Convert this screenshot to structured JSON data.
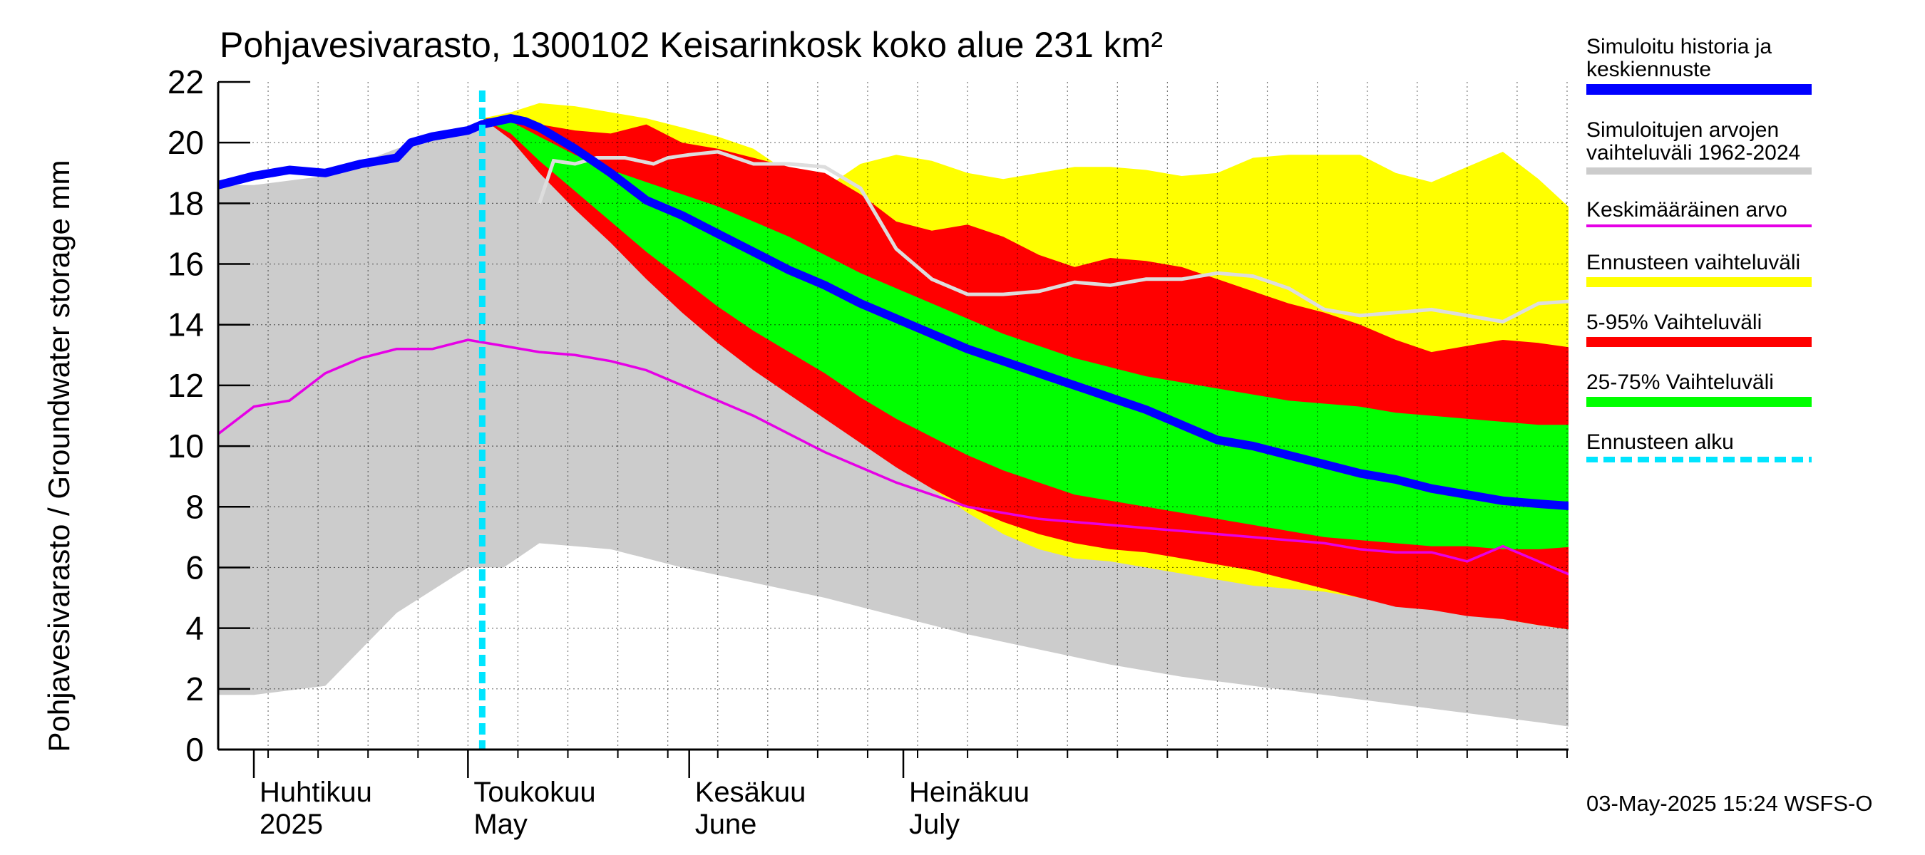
{
  "chart_data": {
    "type": "area",
    "title": "Pohjavesivarasto, 1300102 Keisarinkosk koko alue 231 km²",
    "ylabel": "Pohjavesivarasto / Groundwater storage   mm",
    "ylim": [
      0,
      22
    ],
    "yticks": [
      "0",
      "2",
      "4",
      "6",
      "8",
      "10",
      "12",
      "14",
      "16",
      "18",
      "20",
      "22"
    ],
    "xrange_days": [
      -35,
      156
    ],
    "month_labels": [
      {
        "fi": "Huhtikuu",
        "en": "2025",
        "day": -30
      },
      {
        "fi": "Toukokuu",
        "en": "May",
        "day": 0
      },
      {
        "fi": "Kesäkuu",
        "en": "June",
        "day": 31
      },
      {
        "fi": "Heinäkuu",
        "en": "July",
        "day": 61
      }
    ],
    "month_boundaries": [
      -30,
      0,
      31,
      61
    ],
    "forecast_start_day": 2,
    "history_range": {
      "x": [
        -35,
        -30,
        -20,
        -10,
        0,
        5,
        10,
        20,
        30,
        40,
        50,
        60,
        70,
        80,
        90,
        100,
        110,
        120,
        130,
        140,
        150,
        156
      ],
      "upper": [
        18.6,
        18.6,
        18.9,
        19.8,
        20.4,
        20.6,
        20.8,
        20.5,
        19.2,
        17.4,
        15.5,
        14.0,
        12.6,
        11.5,
        10.2,
        9.1,
        8.2,
        7.6,
        6.9,
        6.5,
        6.0,
        5.5
      ],
      "lower": [
        1.8,
        1.8,
        2.1,
        4.5,
        6.0,
        6.0,
        6.8,
        6.6,
        6.0,
        5.5,
        5.0,
        4.4,
        3.8,
        3.3,
        2.8,
        2.4,
        2.1,
        1.8,
        1.5,
        1.2,
        0.9,
        0.7
      ]
    },
    "forecast_range": {
      "x": [
        2,
        6,
        10,
        15,
        20,
        25,
        30,
        35,
        40,
        45,
        50,
        55,
        60,
        65,
        70,
        75,
        80,
        85,
        90,
        95,
        100,
        105,
        110,
        115,
        120,
        125,
        130,
        135,
        140,
        145,
        150,
        156
      ],
      "upper": [
        20.8,
        21.0,
        21.3,
        21.2,
        21.0,
        20.8,
        20.5,
        20.2,
        19.8,
        19.0,
        18.5,
        19.3,
        19.6,
        19.4,
        19.0,
        18.8,
        19.0,
        19.2,
        19.2,
        19.1,
        18.9,
        19.0,
        19.5,
        19.6,
        19.6,
        19.6,
        19.0,
        18.7,
        19.2,
        19.7,
        18.8,
        17.5
      ],
      "lower": [
        20.8,
        20.4,
        19.5,
        18.6,
        17.6,
        16.4,
        15.2,
        14.0,
        13.1,
        12.3,
        11.3,
        10.4,
        9.4,
        8.6,
        7.8,
        7.1,
        6.6,
        6.3,
        6.2,
        6.0,
        5.8,
        5.6,
        5.4,
        5.3,
        5.2,
        5.0,
        4.9,
        4.7,
        4.5,
        4.3,
        4.1,
        3.9
      ]
    },
    "p5_95": {
      "x": [
        2,
        6,
        10,
        15,
        20,
        25,
        30,
        35,
        40,
        45,
        50,
        55,
        60,
        65,
        70,
        75,
        80,
        85,
        90,
        95,
        100,
        105,
        110,
        115,
        120,
        125,
        130,
        135,
        140,
        145,
        150,
        156
      ],
      "upper": [
        20.8,
        20.8,
        20.6,
        20.4,
        20.3,
        20.6,
        20.0,
        19.8,
        19.5,
        19.2,
        19.0,
        18.3,
        17.4,
        17.1,
        17.3,
        16.9,
        16.3,
        15.9,
        16.2,
        16.1,
        15.9,
        15.5,
        15.1,
        14.7,
        14.4,
        14.0,
        13.5,
        13.1,
        13.3,
        13.5,
        13.4,
        13.2
      ],
      "lower": [
        20.8,
        20.1,
        19.0,
        17.8,
        16.7,
        15.5,
        14.4,
        13.4,
        12.5,
        11.7,
        10.9,
        10.1,
        9.3,
        8.6,
        8.0,
        7.5,
        7.1,
        6.8,
        6.6,
        6.5,
        6.3,
        6.1,
        5.9,
        5.6,
        5.3,
        5.0,
        4.7,
        4.6,
        4.4,
        4.3,
        4.1,
        3.9
      ]
    },
    "p25_75": {
      "x": [
        2,
        6,
        10,
        15,
        20,
        25,
        30,
        35,
        40,
        45,
        50,
        55,
        60,
        65,
        70,
        75,
        80,
        85,
        90,
        95,
        100,
        105,
        110,
        115,
        120,
        125,
        130,
        135,
        140,
        145,
        150,
        156
      ],
      "upper": [
        20.8,
        20.7,
        20.2,
        19.6,
        19.1,
        18.7,
        18.3,
        17.9,
        17.4,
        16.9,
        16.3,
        15.7,
        15.2,
        14.7,
        14.2,
        13.7,
        13.3,
        12.9,
        12.6,
        12.3,
        12.1,
        11.9,
        11.7,
        11.5,
        11.4,
        11.3,
        11.1,
        11.0,
        10.9,
        10.8,
        10.7,
        10.7
      ],
      "lower": [
        20.8,
        20.3,
        19.4,
        18.4,
        17.4,
        16.4,
        15.5,
        14.6,
        13.8,
        13.1,
        12.4,
        11.6,
        10.9,
        10.3,
        9.7,
        9.2,
        8.8,
        8.4,
        8.2,
        8.0,
        7.8,
        7.6,
        7.4,
        7.2,
        7.0,
        6.9,
        6.8,
        6.7,
        6.7,
        6.6,
        6.6,
        6.7
      ]
    },
    "simulated_forecast": {
      "x": [
        -35,
        -30,
        -25,
        -20,
        -15,
        -10,
        -8,
        -5,
        0,
        2,
        4,
        6,
        8,
        10,
        15,
        20,
        25,
        30,
        35,
        40,
        45,
        50,
        55,
        60,
        65,
        70,
        75,
        80,
        85,
        90,
        95,
        100,
        105,
        110,
        115,
        120,
        125,
        130,
        135,
        140,
        145,
        150,
        156
      ],
      "y": [
        18.6,
        18.9,
        19.1,
        19.0,
        19.3,
        19.5,
        20.0,
        20.2,
        20.4,
        20.6,
        20.7,
        20.8,
        20.7,
        20.5,
        19.8,
        19.0,
        18.1,
        17.6,
        17.0,
        16.4,
        15.8,
        15.3,
        14.7,
        14.2,
        13.7,
        13.2,
        12.8,
        12.4,
        12.0,
        11.6,
        11.2,
        10.7,
        10.2,
        10.0,
        9.7,
        9.4,
        9.1,
        8.9,
        8.6,
        8.4,
        8.2,
        8.1,
        8.0
      ]
    },
    "median_history": {
      "x": [
        10,
        12,
        15,
        18,
        22,
        26,
        28,
        31,
        35,
        40,
        45,
        50,
        55,
        60,
        65,
        70,
        75,
        80,
        85,
        90,
        95,
        100,
        105,
        110,
        115,
        120,
        125,
        130,
        135,
        140,
        145,
        150,
        156
      ],
      "y": [
        18.0,
        19.4,
        19.3,
        19.5,
        19.5,
        19.3,
        19.5,
        19.6,
        19.7,
        19.3,
        19.3,
        19.2,
        18.5,
        16.5,
        15.5,
        15.0,
        15.0,
        15.1,
        15.4,
        15.3,
        15.5,
        15.5,
        15.7,
        15.6,
        15.2,
        14.5,
        14.3,
        14.4,
        14.5,
        14.3,
        14.1,
        14.7,
        14.8
      ]
    },
    "mean": {
      "x": [
        -35,
        -30,
        -25,
        -20,
        -15,
        -10,
        -5,
        0,
        5,
        10,
        15,
        20,
        25,
        30,
        35,
        40,
        45,
        50,
        55,
        60,
        65,
        70,
        75,
        80,
        85,
        90,
        95,
        100,
        105,
        110,
        115,
        120,
        125,
        130,
        135,
        140,
        145,
        150,
        156
      ],
      "y": [
        10.4,
        11.3,
        11.5,
        12.4,
        12.9,
        13.2,
        13.2,
        13.5,
        13.3,
        13.1,
        13.0,
        12.8,
        12.5,
        12.0,
        11.5,
        11.0,
        10.4,
        9.8,
        9.3,
        8.8,
        8.4,
        8.0,
        7.8,
        7.6,
        7.5,
        7.4,
        7.3,
        7.2,
        7.1,
        7.0,
        6.9,
        6.8,
        6.6,
        6.5,
        6.5,
        6.2,
        6.7,
        6.2,
        5.6
      ]
    }
  },
  "legend": {
    "items": [
      {
        "label": "Simuloitu historia ja\nkeskiennuste",
        "color": "#0000ff"
      },
      {
        "label": "Simuloitujen arvojen\nvaihteluväli 1962-2024",
        "color": "#cccccc"
      },
      {
        "label": "Keskimääräinen arvo",
        "color": "#e600e6"
      },
      {
        "label": "Ennusteen vaihteluväli",
        "color": "#ffff00"
      },
      {
        "label": "5-95% Vaihteluväli",
        "color": "#ff0000"
      },
      {
        "label": "25-75% Vaihteluväli",
        "color": "#00ff00"
      },
      {
        "label": "Ennusteen alku",
        "color": "#00e5ff"
      }
    ]
  },
  "timestamp": "03-May-2025 15:24 WSFS-O"
}
